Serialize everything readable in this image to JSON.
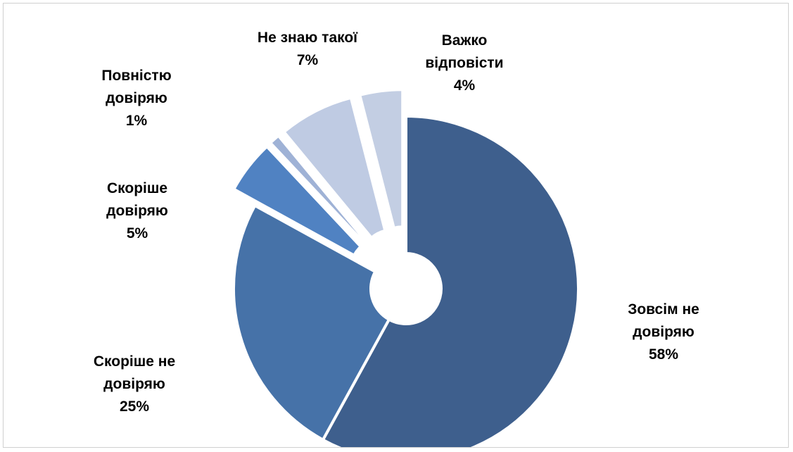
{
  "chart_data": {
    "type": "pie",
    "style": "doughnut-exploded",
    "slices": [
      {
        "label_lines": [
          "Зовсім не",
          "довіряю"
        ],
        "value": 58,
        "value_label": "58%",
        "color": "#3e5f8d"
      },
      {
        "label_lines": [
          "Скоріше не",
          "довіряю"
        ],
        "value": 25,
        "value_label": "25%",
        "color": "#4672a8"
      },
      {
        "label_lines": [
          "Скоріше",
          "довіряю"
        ],
        "value": 5,
        "value_label": "5%",
        "color": "#5082c2"
      },
      {
        "label_lines": [
          "Повністю",
          "довіряю"
        ],
        "value": 1,
        "value_label": "1%",
        "color": "#9fb2d6"
      },
      {
        "label_lines": [
          "Не знаю такої"
        ],
        "value": 7,
        "value_label": "7%",
        "color": "#bfcbe3"
      },
      {
        "label_lines": [
          "Важко",
          "відповісти"
        ],
        "value": 4,
        "value_label": "4%",
        "color": "#c3cee3"
      }
    ]
  }
}
